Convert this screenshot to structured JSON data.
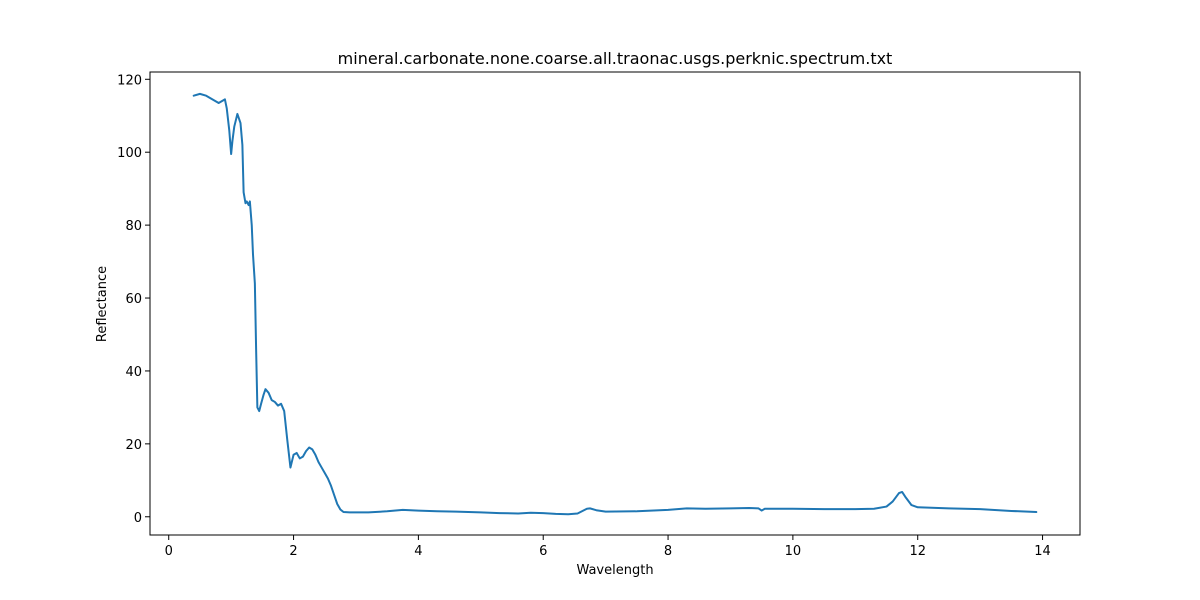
{
  "chart_data": {
    "type": "line",
    "title": "mineral.carbonate.none.coarse.all.traonac.usgs.perknic.spectrum.txt",
    "xlabel": "Wavelength",
    "ylabel": "Reflectance",
    "xlim": [
      -0.3,
      14.6
    ],
    "ylim": [
      -5,
      122
    ],
    "xticks": [
      0,
      2,
      4,
      6,
      8,
      10,
      12,
      14
    ],
    "yticks": [
      0,
      20,
      40,
      60,
      80,
      100,
      120
    ],
    "grid": false,
    "series": [
      {
        "color": "#1f77b4",
        "x": [
          0.4,
          0.5,
          0.6,
          0.7,
          0.8,
          0.9,
          0.93,
          0.97,
          1.0,
          1.02,
          1.05,
          1.1,
          1.15,
          1.18,
          1.2,
          1.23,
          1.25,
          1.28,
          1.3,
          1.33,
          1.35,
          1.38,
          1.4,
          1.42,
          1.45,
          1.48,
          1.52,
          1.55,
          1.6,
          1.65,
          1.7,
          1.75,
          1.8,
          1.85,
          1.9,
          1.95,
          2.0,
          2.05,
          2.1,
          2.15,
          2.2,
          2.25,
          2.3,
          2.35,
          2.4,
          2.45,
          2.5,
          2.55,
          2.6,
          2.65,
          2.7,
          2.75,
          2.8,
          2.9,
          3.0,
          3.2,
          3.5,
          3.75,
          4.0,
          4.3,
          4.6,
          5.0,
          5.3,
          5.6,
          5.8,
          6.0,
          6.2,
          6.4,
          6.55,
          6.7,
          6.75,
          6.85,
          7.0,
          7.5,
          8.0,
          8.3,
          8.6,
          9.0,
          9.3,
          9.45,
          9.5,
          9.55,
          9.7,
          10.0,
          10.5,
          11.0,
          11.3,
          11.5,
          11.6,
          11.7,
          11.75,
          11.8,
          11.9,
          12.0,
          12.5,
          13.0,
          13.5,
          13.9
        ],
        "y": [
          115.5,
          116.0,
          115.5,
          114.5,
          113.5,
          114.5,
          112.0,
          106.0,
          99.5,
          103.0,
          107.0,
          110.5,
          108.0,
          102.0,
          89.0,
          86.0,
          86.5,
          85.5,
          86.5,
          80.0,
          72.0,
          64.0,
          46.0,
          30.0,
          29.0,
          31.0,
          33.5,
          35.0,
          34.0,
          32.0,
          31.5,
          30.5,
          31.0,
          29.0,
          21.0,
          13.5,
          17.0,
          17.5,
          16.0,
          16.5,
          18.0,
          19.0,
          18.5,
          17.0,
          15.0,
          13.5,
          12.0,
          10.5,
          8.5,
          6.0,
          3.5,
          2.0,
          1.3,
          1.2,
          1.2,
          1.2,
          1.5,
          1.9,
          1.7,
          1.5,
          1.4,
          1.2,
          1.0,
          0.9,
          1.1,
          1.0,
          0.8,
          0.7,
          0.9,
          2.2,
          2.3,
          1.8,
          1.4,
          1.5,
          1.9,
          2.3,
          2.2,
          2.3,
          2.4,
          2.3,
          1.7,
          2.2,
          2.2,
          2.2,
          2.1,
          2.1,
          2.2,
          2.8,
          4.2,
          6.5,
          6.8,
          5.5,
          3.2,
          2.6,
          2.3,
          2.1,
          1.6,
          1.3
        ]
      }
    ]
  }
}
